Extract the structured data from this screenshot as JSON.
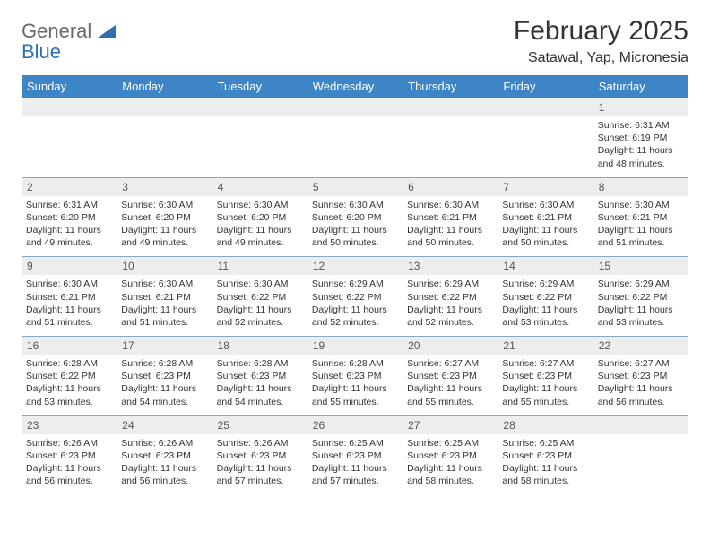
{
  "logo": {
    "word1": "General",
    "word2": "Blue"
  },
  "title": "February 2025",
  "location": "Satawal, Yap, Micronesia",
  "colors": {
    "header_bg": "#3d85c6",
    "header_text": "#ffffff",
    "daynum_bg": "#ededed",
    "row_border": "#88a8c8",
    "logo_gray": "#6a6a6a",
    "logo_blue": "#2f6fb0"
  },
  "day_headers": [
    "Sunday",
    "Monday",
    "Tuesday",
    "Wednesday",
    "Thursday",
    "Friday",
    "Saturday"
  ],
  "weeks": [
    [
      {
        "num": "",
        "lines": [
          "",
          "",
          "",
          ""
        ]
      },
      {
        "num": "",
        "lines": [
          "",
          "",
          "",
          ""
        ]
      },
      {
        "num": "",
        "lines": [
          "",
          "",
          "",
          ""
        ]
      },
      {
        "num": "",
        "lines": [
          "",
          "",
          "",
          ""
        ]
      },
      {
        "num": "",
        "lines": [
          "",
          "",
          "",
          ""
        ]
      },
      {
        "num": "",
        "lines": [
          "",
          "",
          "",
          ""
        ]
      },
      {
        "num": "1",
        "lines": [
          "Sunrise: 6:31 AM",
          "Sunset: 6:19 PM",
          "Daylight: 11 hours",
          "and 48 minutes."
        ]
      }
    ],
    [
      {
        "num": "2",
        "lines": [
          "Sunrise: 6:31 AM",
          "Sunset: 6:20 PM",
          "Daylight: 11 hours",
          "and 49 minutes."
        ]
      },
      {
        "num": "3",
        "lines": [
          "Sunrise: 6:30 AM",
          "Sunset: 6:20 PM",
          "Daylight: 11 hours",
          "and 49 minutes."
        ]
      },
      {
        "num": "4",
        "lines": [
          "Sunrise: 6:30 AM",
          "Sunset: 6:20 PM",
          "Daylight: 11 hours",
          "and 49 minutes."
        ]
      },
      {
        "num": "5",
        "lines": [
          "Sunrise: 6:30 AM",
          "Sunset: 6:20 PM",
          "Daylight: 11 hours",
          "and 50 minutes."
        ]
      },
      {
        "num": "6",
        "lines": [
          "Sunrise: 6:30 AM",
          "Sunset: 6:21 PM",
          "Daylight: 11 hours",
          "and 50 minutes."
        ]
      },
      {
        "num": "7",
        "lines": [
          "Sunrise: 6:30 AM",
          "Sunset: 6:21 PM",
          "Daylight: 11 hours",
          "and 50 minutes."
        ]
      },
      {
        "num": "8",
        "lines": [
          "Sunrise: 6:30 AM",
          "Sunset: 6:21 PM",
          "Daylight: 11 hours",
          "and 51 minutes."
        ]
      }
    ],
    [
      {
        "num": "9",
        "lines": [
          "Sunrise: 6:30 AM",
          "Sunset: 6:21 PM",
          "Daylight: 11 hours",
          "and 51 minutes."
        ]
      },
      {
        "num": "10",
        "lines": [
          "Sunrise: 6:30 AM",
          "Sunset: 6:21 PM",
          "Daylight: 11 hours",
          "and 51 minutes."
        ]
      },
      {
        "num": "11",
        "lines": [
          "Sunrise: 6:30 AM",
          "Sunset: 6:22 PM",
          "Daylight: 11 hours",
          "and 52 minutes."
        ]
      },
      {
        "num": "12",
        "lines": [
          "Sunrise: 6:29 AM",
          "Sunset: 6:22 PM",
          "Daylight: 11 hours",
          "and 52 minutes."
        ]
      },
      {
        "num": "13",
        "lines": [
          "Sunrise: 6:29 AM",
          "Sunset: 6:22 PM",
          "Daylight: 11 hours",
          "and 52 minutes."
        ]
      },
      {
        "num": "14",
        "lines": [
          "Sunrise: 6:29 AM",
          "Sunset: 6:22 PM",
          "Daylight: 11 hours",
          "and 53 minutes."
        ]
      },
      {
        "num": "15",
        "lines": [
          "Sunrise: 6:29 AM",
          "Sunset: 6:22 PM",
          "Daylight: 11 hours",
          "and 53 minutes."
        ]
      }
    ],
    [
      {
        "num": "16",
        "lines": [
          "Sunrise: 6:28 AM",
          "Sunset: 6:22 PM",
          "Daylight: 11 hours",
          "and 53 minutes."
        ]
      },
      {
        "num": "17",
        "lines": [
          "Sunrise: 6:28 AM",
          "Sunset: 6:23 PM",
          "Daylight: 11 hours",
          "and 54 minutes."
        ]
      },
      {
        "num": "18",
        "lines": [
          "Sunrise: 6:28 AM",
          "Sunset: 6:23 PM",
          "Daylight: 11 hours",
          "and 54 minutes."
        ]
      },
      {
        "num": "19",
        "lines": [
          "Sunrise: 6:28 AM",
          "Sunset: 6:23 PM",
          "Daylight: 11 hours",
          "and 55 minutes."
        ]
      },
      {
        "num": "20",
        "lines": [
          "Sunrise: 6:27 AM",
          "Sunset: 6:23 PM",
          "Daylight: 11 hours",
          "and 55 minutes."
        ]
      },
      {
        "num": "21",
        "lines": [
          "Sunrise: 6:27 AM",
          "Sunset: 6:23 PM",
          "Daylight: 11 hours",
          "and 55 minutes."
        ]
      },
      {
        "num": "22",
        "lines": [
          "Sunrise: 6:27 AM",
          "Sunset: 6:23 PM",
          "Daylight: 11 hours",
          "and 56 minutes."
        ]
      }
    ],
    [
      {
        "num": "23",
        "lines": [
          "Sunrise: 6:26 AM",
          "Sunset: 6:23 PM",
          "Daylight: 11 hours",
          "and 56 minutes."
        ]
      },
      {
        "num": "24",
        "lines": [
          "Sunrise: 6:26 AM",
          "Sunset: 6:23 PM",
          "Daylight: 11 hours",
          "and 56 minutes."
        ]
      },
      {
        "num": "25",
        "lines": [
          "Sunrise: 6:26 AM",
          "Sunset: 6:23 PM",
          "Daylight: 11 hours",
          "and 57 minutes."
        ]
      },
      {
        "num": "26",
        "lines": [
          "Sunrise: 6:25 AM",
          "Sunset: 6:23 PM",
          "Daylight: 11 hours",
          "and 57 minutes."
        ]
      },
      {
        "num": "27",
        "lines": [
          "Sunrise: 6:25 AM",
          "Sunset: 6:23 PM",
          "Daylight: 11 hours",
          "and 58 minutes."
        ]
      },
      {
        "num": "28",
        "lines": [
          "Sunrise: 6:25 AM",
          "Sunset: 6:23 PM",
          "Daylight: 11 hours",
          "and 58 minutes."
        ]
      },
      {
        "num": "",
        "lines": [
          "",
          "",
          "",
          ""
        ]
      }
    ]
  ]
}
